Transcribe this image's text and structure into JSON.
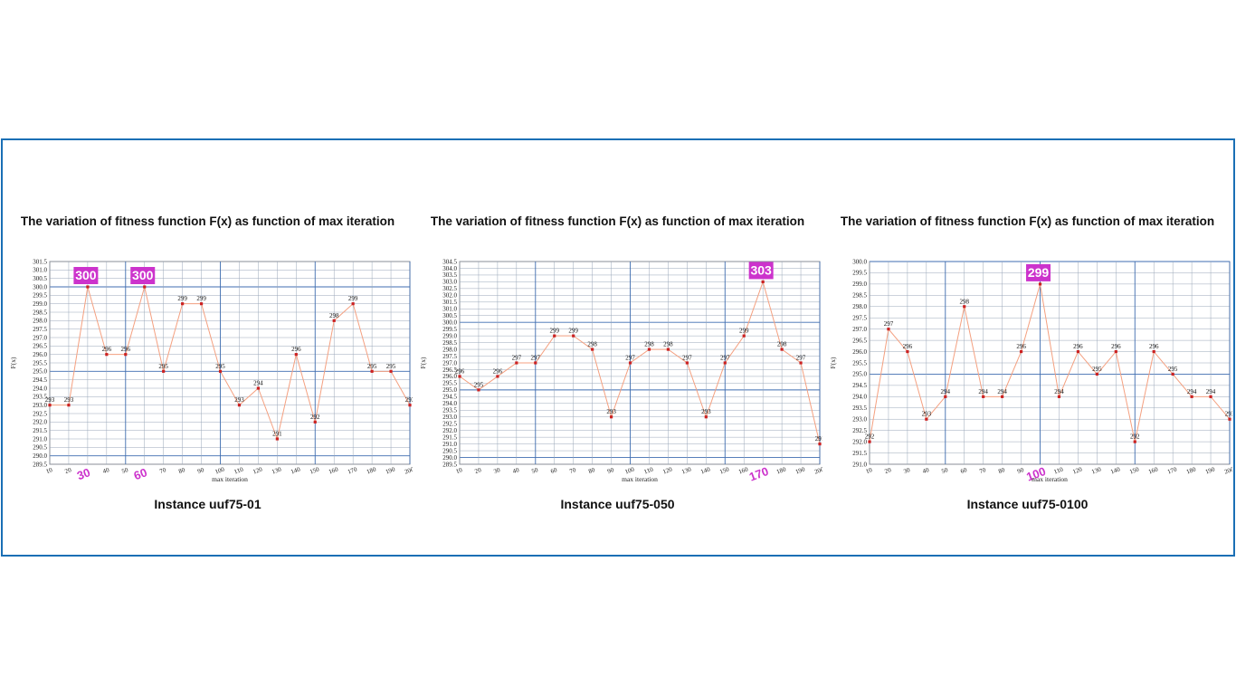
{
  "chart_data": [
    {
      "type": "line",
      "title": "The variation of fitness function F(x) as function of max iteration",
      "caption": "Instance uuf75-01",
      "xlabel": "max iteration",
      "ylabel": "F(x)",
      "x": [
        10,
        20,
        30,
        40,
        50,
        60,
        70,
        80,
        90,
        100,
        110,
        120,
        130,
        140,
        150,
        160,
        170,
        180,
        190,
        200
      ],
      "series": [
        {
          "values": [
            293,
            293,
            300,
            296,
            296,
            300,
            295,
            299,
            299,
            295,
            293,
            294,
            291,
            296,
            292,
            298,
            299,
            295,
            295,
            293
          ]
        }
      ],
      "ylim": [
        289.5,
        301.5
      ],
      "ytick_step": 0.5,
      "highlights": [
        {
          "x": 30,
          "value": "300"
        },
        {
          "x": 60,
          "value": "300"
        }
      ],
      "highlight_x_labels": [
        "30",
        "60"
      ],
      "colors": {
        "line": "#f4a080",
        "marker": "#cc2222",
        "highlight_bg": "#cc33cc",
        "grid_minor": "#9aa7b8",
        "grid_major": "#3f6db0"
      }
    },
    {
      "type": "line",
      "title": "The variation of fitness function F(x) as function of max iteration",
      "caption": "Instance uuf75-050",
      "xlabel": "max iteration",
      "ylabel": "F(x)",
      "x": [
        10,
        20,
        30,
        40,
        50,
        60,
        70,
        80,
        90,
        100,
        110,
        120,
        130,
        140,
        150,
        160,
        170,
        180,
        190,
        200
      ],
      "series": [
        {
          "values": [
            296,
            295,
            296,
            297,
            297,
            299,
            299,
            298,
            293,
            297,
            298,
            298,
            297,
            293,
            297,
            299,
            303,
            298,
            297,
            291
          ]
        }
      ],
      "ylim": [
        289.5,
        304.5
      ],
      "ytick_step": 0.5,
      "highlights": [
        {
          "x": 170,
          "value": "303"
        }
      ],
      "highlight_x_labels": [
        "170"
      ],
      "colors": {
        "line": "#f4a080",
        "marker": "#cc2222",
        "highlight_bg": "#cc33cc",
        "grid_minor": "#9aa7b8",
        "grid_major": "#3f6db0"
      }
    },
    {
      "type": "line",
      "title": "The variation of fitness function F(x) as function of max iteration",
      "caption": "Instance uuf75-0100",
      "xlabel": "max iteration",
      "ylabel": "F(x)",
      "x": [
        10,
        20,
        30,
        40,
        50,
        60,
        70,
        80,
        90,
        100,
        110,
        120,
        130,
        140,
        150,
        160,
        170,
        180,
        190,
        200
      ],
      "series": [
        {
          "values": [
            292,
            297,
            296,
            293,
            294,
            298,
            294,
            294,
            296,
            299,
            294,
            296,
            295,
            296,
            292,
            296,
            295,
            294,
            294,
            293
          ]
        }
      ],
      "ylim": [
        291.0,
        300.0
      ],
      "ytick_step": 0.5,
      "highlights": [
        {
          "x": 100,
          "value": "299"
        }
      ],
      "highlight_x_labels": [
        "100"
      ],
      "colors": {
        "line": "#f4a080",
        "marker": "#cc2222",
        "highlight_bg": "#cc33cc",
        "grid_minor": "#9aa7b8",
        "grid_major": "#3f6db0"
      }
    }
  ]
}
